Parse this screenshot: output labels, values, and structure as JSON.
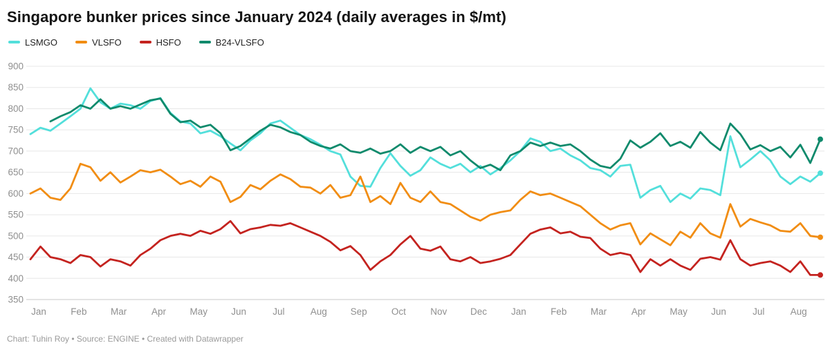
{
  "title": "Singapore bunker prices since January 2024 (daily averages in $/mt)",
  "footer": "Chart: Tuhin Roy • Source: ENGINE • Created with Datawrapper",
  "colors": {
    "lsmgo": "#53dfdb",
    "vlsfo": "#f18d13",
    "hsfo": "#c4231f",
    "b24vlsfo": "#0f8a6c",
    "grid": "#e7e7e7",
    "baseline": "#c9c9c9",
    "axis_text": "#8f8f8f"
  },
  "chart_data": {
    "type": "line",
    "title": "Singapore bunker prices since January 2024 (daily averages in $/mt)",
    "xlabel": "",
    "ylabel": "$/mt",
    "ylim": [
      350,
      900
    ],
    "grid": true,
    "legend_position": "top",
    "y_ticks": [
      350,
      400,
      450,
      500,
      550,
      600,
      650,
      700,
      750,
      800,
      850,
      900
    ],
    "x_tick_labels": [
      "Jan",
      "Feb",
      "Mar",
      "Apr",
      "May",
      "Jun",
      "Jul",
      "Aug",
      "Sep",
      "Oct",
      "Nov",
      "Dec",
      "Jan",
      "Feb",
      "Mar",
      "Apr",
      "May",
      "Jun",
      "Jul",
      "Aug"
    ],
    "x_range_note": "Jan 2024 – Aug 2025, ~4 samples per month",
    "series": [
      {
        "name": "LSMGO",
        "color": "#53dfdb",
        "end_value": 648,
        "values": [
          740,
          755,
          748,
          765,
          782,
          800,
          848,
          815,
          800,
          812,
          808,
          800,
          818,
          825,
          790,
          770,
          765,
          742,
          748,
          735,
          718,
          702,
          725,
          742,
          765,
          772,
          755,
          738,
          728,
          715,
          700,
          692,
          640,
          618,
          616,
          660,
          695,
          665,
          642,
          655,
          685,
          670,
          660,
          670,
          650,
          665,
          645,
          660,
          678,
          700,
          730,
          722,
          700,
          706,
          690,
          678,
          660,
          655,
          640,
          665,
          668,
          590,
          608,
          618,
          580,
          600,
          588,
          612,
          608,
          596,
          735,
          662,
          680,
          700,
          678,
          640,
          622,
          640,
          628,
          648
        ]
      },
      {
        "name": "VLSFO",
        "color": "#f18d13",
        "end_value": 497,
        "values": [
          600,
          612,
          590,
          585,
          612,
          670,
          662,
          630,
          650,
          626,
          640,
          655,
          650,
          656,
          640,
          622,
          630,
          616,
          640,
          628,
          580,
          592,
          620,
          610,
          630,
          645,
          634,
          616,
          614,
          600,
          620,
          590,
          596,
          640,
          580,
          594,
          575,
          625,
          590,
          580,
          605,
          580,
          575,
          560,
          545,
          536,
          550,
          556,
          560,
          585,
          605,
          596,
          600,
          590,
          580,
          570,
          550,
          530,
          515,
          525,
          530,
          480,
          506,
          492,
          478,
          510,
          496,
          530,
          506,
          496,
          575,
          522,
          540,
          532,
          525,
          512,
          510,
          530,
          500,
          497
        ]
      },
      {
        "name": "HSFO",
        "color": "#c4231f",
        "end_value": 408,
        "values": [
          445,
          475,
          450,
          445,
          436,
          455,
          450,
          428,
          445,
          440,
          430,
          455,
          470,
          490,
          500,
          505,
          500,
          512,
          505,
          516,
          535,
          506,
          516,
          520,
          526,
          524,
          530,
          520,
          510,
          500,
          486,
          466,
          476,
          455,
          420,
          440,
          455,
          480,
          500,
          470,
          465,
          475,
          445,
          440,
          450,
          436,
          440,
          446,
          455,
          480,
          505,
          515,
          520,
          506,
          510,
          498,
          495,
          470,
          455,
          460,
          455,
          415,
          445,
          430,
          445,
          430,
          420,
          446,
          450,
          444,
          490,
          445,
          430,
          436,
          440,
          430,
          415,
          440,
          408,
          408
        ]
      },
      {
        "name": "B24-VLSFO",
        "color": "#0f8a6c",
        "end_value": 728,
        "values": [
          null,
          null,
          770,
          782,
          792,
          808,
          800,
          822,
          800,
          806,
          800,
          810,
          820,
          824,
          788,
          768,
          772,
          756,
          762,
          742,
          702,
          712,
          730,
          748,
          762,
          756,
          745,
          738,
          722,
          712,
          706,
          716,
          700,
          696,
          706,
          694,
          700,
          716,
          696,
          710,
          700,
          710,
          690,
          700,
          678,
          660,
          668,
          655,
          690,
          700,
          720,
          712,
          720,
          712,
          716,
          700,
          680,
          665,
          660,
          682,
          725,
          708,
          722,
          742,
          712,
          722,
          708,
          745,
          720,
          702,
          765,
          740,
          704,
          714,
          700,
          710,
          685,
          715,
          672,
          728
        ]
      }
    ]
  }
}
